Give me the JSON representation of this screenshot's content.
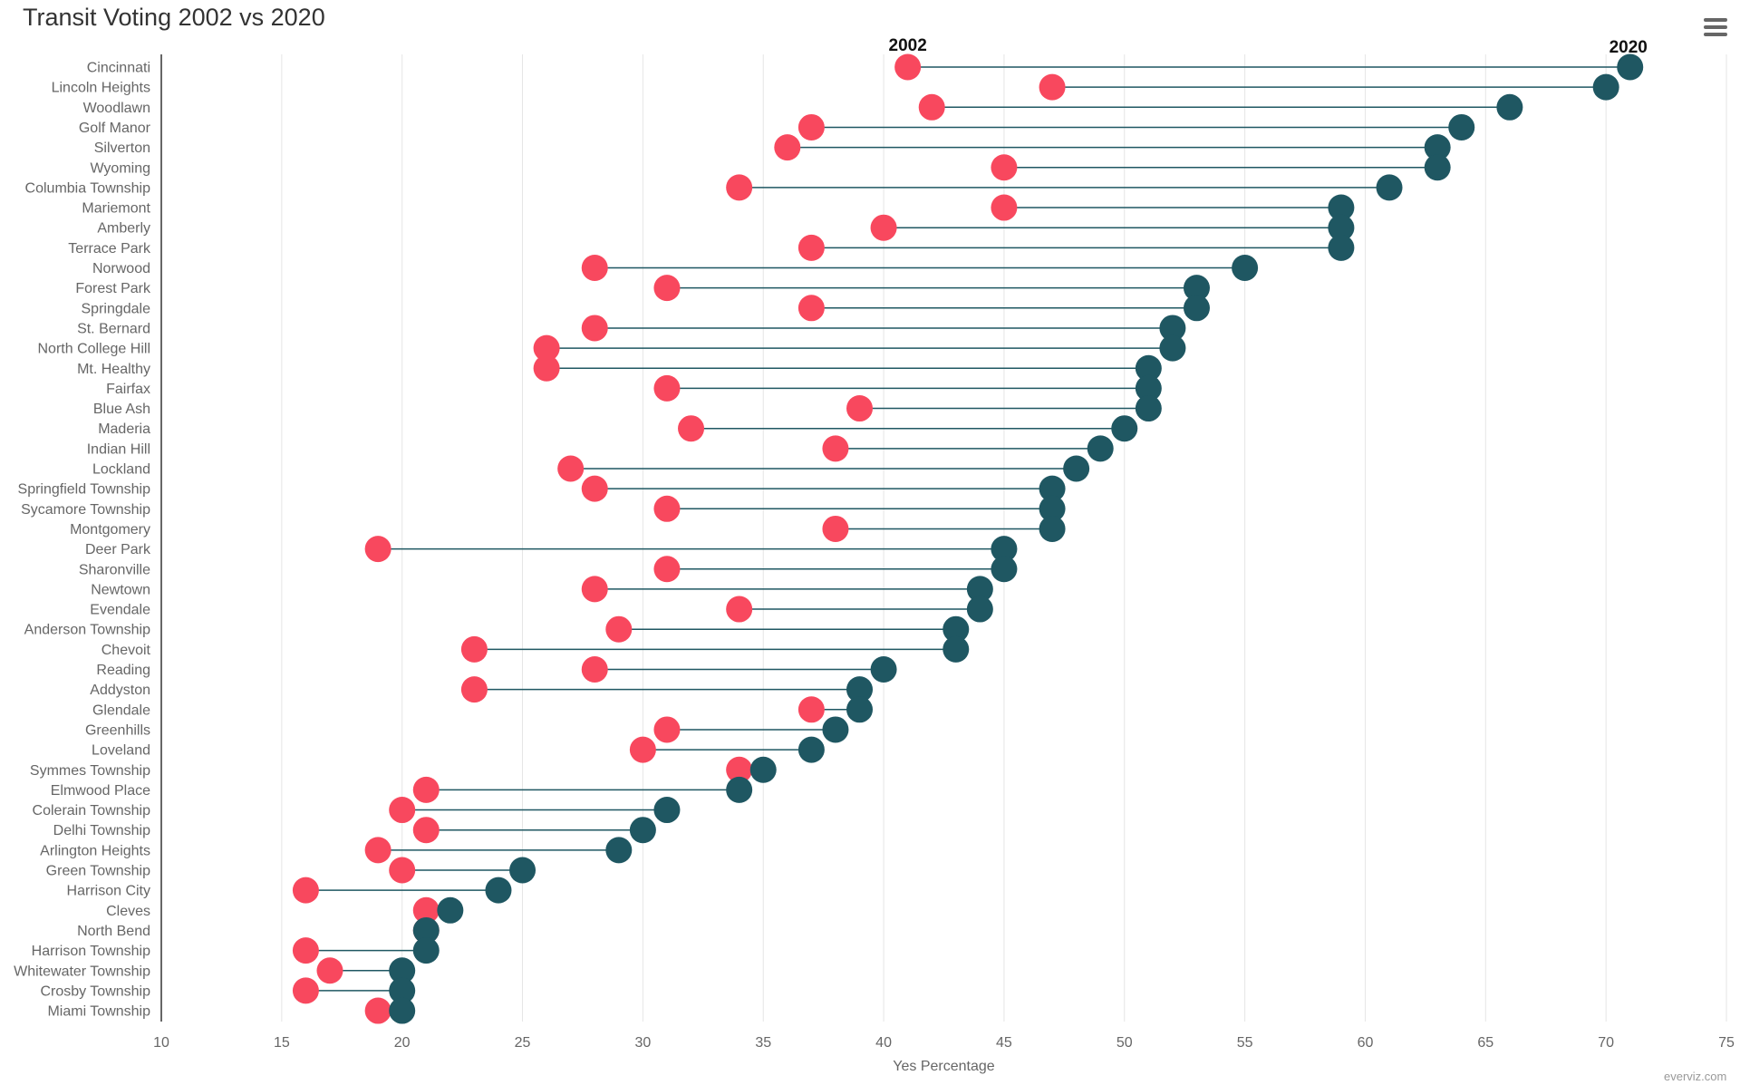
{
  "title": "Transit Voting 2002 vs 2020",
  "credits": "everviz.com",
  "menu_icon": "hamburger-menu-icon",
  "colors": {
    "low": "#f8485e",
    "high": "#1f5762",
    "connector": "#1f5762",
    "grid": "#e6e6e6",
    "axis_line": "#333333"
  },
  "chart_data": {
    "type": "dumbbell",
    "title": "Transit Voting 2002 vs 2020",
    "xlabel": "Yes Percentage",
    "ylabel": "",
    "xlim": [
      10,
      75
    ],
    "x_ticks": [
      "10",
      "15",
      "20",
      "25",
      "30",
      "35",
      "40",
      "45",
      "50",
      "55",
      "60",
      "65",
      "70",
      "75"
    ],
    "grid": true,
    "orientation": "horizontal",
    "categories": [
      "Cincinnati",
      "Lincoln Heights",
      "Woodlawn",
      "Golf Manor",
      "Silverton",
      "Wyoming",
      "Columbia Township",
      "Mariemont",
      "Amberly",
      "Terrace Park",
      "Norwood",
      "Forest Park",
      "Springdale",
      "St. Bernard",
      "North College Hill",
      "Mt. Healthy",
      "Fairfax",
      "Blue Ash",
      "Maderia",
      "Indian Hill",
      "Lockland",
      "Springfield Township",
      "Sycamore Township",
      "Montgomery",
      "Deer Park",
      "Sharonville",
      "Newtown",
      "Evendale",
      "Anderson Township",
      "Chevoit",
      "Reading",
      "Addyston",
      "Glendale",
      "Greenhills",
      "Loveland",
      "Symmes Township",
      "Elmwood Place",
      "Colerain Township",
      "Delhi Township",
      "Arlington Heights",
      "Green Township",
      "Harrison City",
      "Cleves",
      "North Bend",
      "Harrison Township",
      "Whitewater Township",
      "Crosby Township",
      "Miami Township"
    ],
    "low": [
      41,
      47,
      42,
      37,
      36,
      45,
      34,
      45,
      40,
      37,
      28,
      31,
      37,
      28,
      26,
      26,
      31,
      39,
      32,
      38,
      27,
      28,
      31,
      38,
      19,
      31,
      28,
      34,
      29,
      23,
      28,
      23,
      37,
      31,
      30,
      34,
      21,
      20,
      21,
      19,
      20,
      16,
      21,
      21,
      16,
      17,
      16,
      19
    ],
    "high": [
      71,
      70,
      66,
      64,
      63,
      63,
      61,
      59,
      59,
      59,
      55,
      53,
      53,
      52,
      52,
      51,
      51,
      51,
      50,
      49,
      48,
      47,
      47,
      47,
      45,
      45,
      44,
      44,
      43,
      43,
      40,
      39,
      39,
      38,
      37,
      35,
      34,
      31,
      30,
      29,
      25,
      24,
      22,
      21,
      21,
      20,
      20,
      20
    ],
    "point_labels": {
      "low": "2002",
      "high": "2020"
    }
  }
}
